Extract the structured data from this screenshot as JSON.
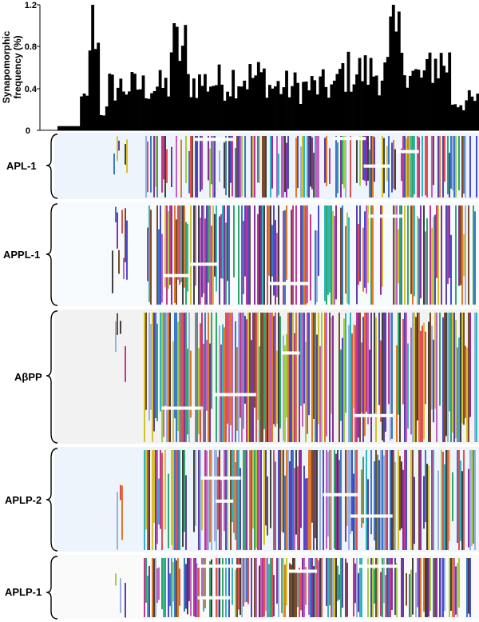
{
  "chart_data": {
    "type": "bar",
    "title": "",
    "ylabel_line1": "Synapomorphic",
    "ylabel_line2": "frequency (%)",
    "ylim": [
      0,
      1.2
    ],
    "yticks": [
      "0",
      "0.4",
      "0.8",
      "1.2"
    ],
    "n_positions": 150,
    "profile": [
      {
        "from": 0,
        "to": 8,
        "value": 0.04
      },
      {
        "from": 8,
        "to": 11,
        "value": 0.3
      },
      {
        "from": 11,
        "to": 12,
        "value": 0.95
      },
      {
        "from": 12,
        "to": 14,
        "value": 1.12
      },
      {
        "from": 14,
        "to": 15,
        "value": 0.85
      },
      {
        "from": 15,
        "to": 18,
        "value": 0.2
      },
      {
        "from": 18,
        "to": 40,
        "value": 0.45
      },
      {
        "from": 40,
        "to": 46,
        "value": 0.85
      },
      {
        "from": 46,
        "to": 62,
        "value": 0.5
      },
      {
        "from": 62,
        "to": 75,
        "value": 0.55
      },
      {
        "from": 75,
        "to": 100,
        "value": 0.45
      },
      {
        "from": 100,
        "to": 118,
        "value": 0.6
      },
      {
        "from": 118,
        "to": 124,
        "value": 0.95
      },
      {
        "from": 124,
        "to": 132,
        "value": 0.55
      },
      {
        "from": 132,
        "to": 140,
        "value": 0.7
      },
      {
        "from": 140,
        "to": 150,
        "value": 0.3
      }
    ]
  },
  "alignment": {
    "groups": [
      {
        "label": "APL-1",
        "tint": "#eef4fb"
      },
      {
        "label": "APPL-1",
        "tint": "#f7fafd"
      },
      {
        "label": "AβPP",
        "tint": "#f2f2f2"
      },
      {
        "label": "APLP-2",
        "tint": "#eef4fb"
      },
      {
        "label": "APLP-1",
        "tint": "#fafafa"
      }
    ],
    "palette": [
      "#c0398f",
      "#5a3fa8",
      "#3a78c8",
      "#e07a2a",
      "#2fa86a",
      "#d4c22a",
      "#8a2f9f",
      "#e05050",
      "#30b5c0",
      "#7a4a2a",
      "#a0d040",
      "#4a4ad0",
      "#c060c0",
      "#404040",
      "#9ab0e0"
    ]
  }
}
